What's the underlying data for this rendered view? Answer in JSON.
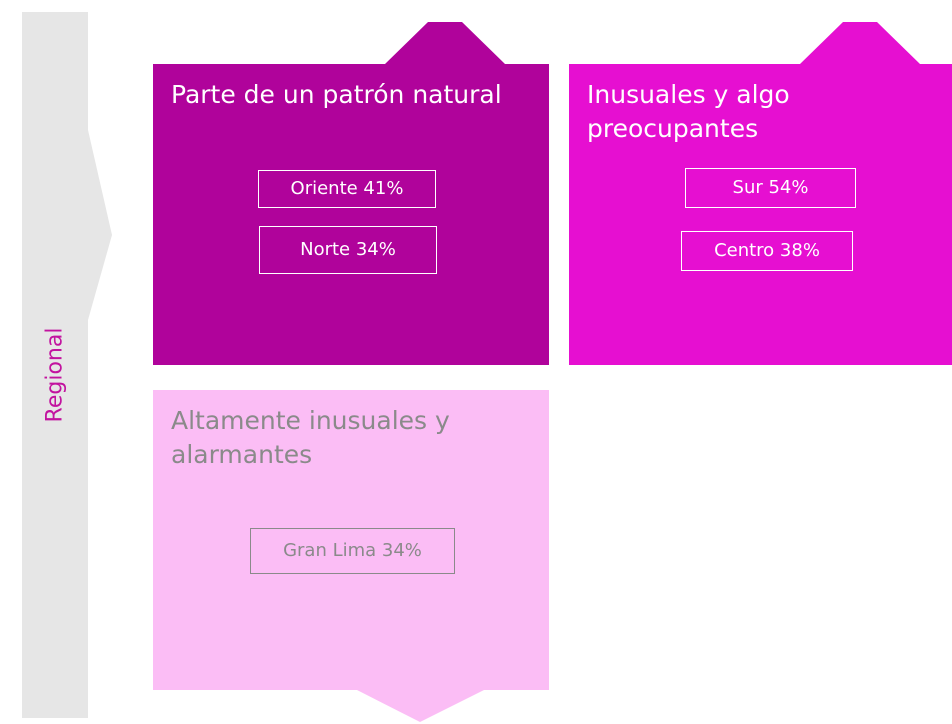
{
  "axis_label": "Regional",
  "boxes": [
    {
      "title": "Parte de un patrón natural",
      "items": [
        "Oriente 41%",
        "Norte 34%"
      ]
    },
    {
      "title": "Inusuales y algo preocupantes",
      "items": [
        "Sur 54%",
        "Centro 38%"
      ]
    },
    {
      "title": "Altamente inusuales y alarmantes",
      "items": [
        "Gran Lima 34%"
      ]
    }
  ]
}
